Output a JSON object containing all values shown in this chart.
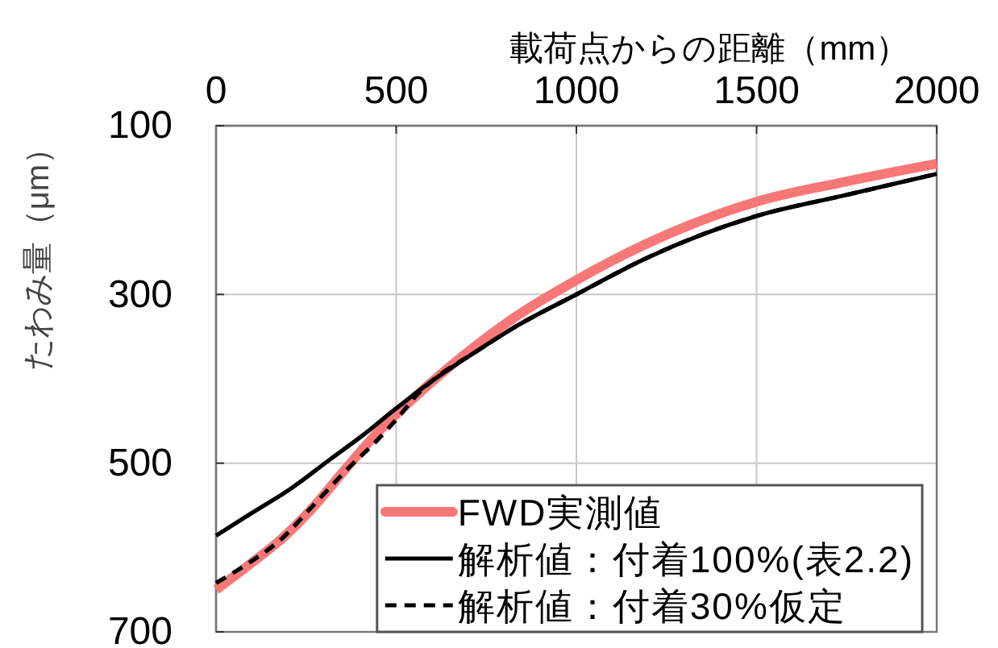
{
  "chart_data": {
    "type": "line",
    "xlabel": "載荷点からの距離（mm）",
    "ylabel": "たわみ量（μm）",
    "xlim": [
      0,
      2000
    ],
    "xticks": [
      0,
      500,
      1000,
      1500,
      2000
    ],
    "ylim": [
      700,
      100
    ],
    "yticks": [
      100,
      300,
      500,
      700
    ],
    "grid": true,
    "legend": "bottom right",
    "series": [
      {
        "name": "FWD実測値",
        "color": "#f87878",
        "line_style": "solid",
        "x": [
          0,
          96,
          181,
          270,
          357,
          450,
          543,
          636,
          717,
          836,
          1000,
          1194,
          1500,
          1750,
          2000
        ],
        "values": [
          650,
          619,
          590,
          552,
          508,
          463,
          425,
          390,
          362,
          325,
          283,
          240,
          190,
          166,
          145
        ]
      },
      {
        "name": "解析値：付着100%(表2.2)",
        "color": "#000000",
        "line_style": "solid",
        "x": [
          0,
          92,
          208,
          315,
          404,
          494,
          598,
          717,
          836,
          1000,
          1194,
          1500,
          1750,
          2000
        ],
        "values": [
          586,
          561,
          530,
          496,
          468,
          437,
          403,
          369,
          337,
          300,
          257,
          207,
          182,
          157
        ]
      },
      {
        "name": "解析値：付着30%仮定",
        "color": "#000000",
        "line_style": "dashed",
        "x": [
          0,
          92,
          181,
          270,
          360,
          449,
          509,
          553,
          598,
          717,
          836,
          1000,
          1194,
          1500,
          1750,
          2000
        ],
        "values": [
          642,
          618,
          590,
          550,
          509,
          472,
          444,
          421,
          403,
          369,
          337,
          300,
          257,
          207,
          182,
          157
        ]
      }
    ]
  }
}
